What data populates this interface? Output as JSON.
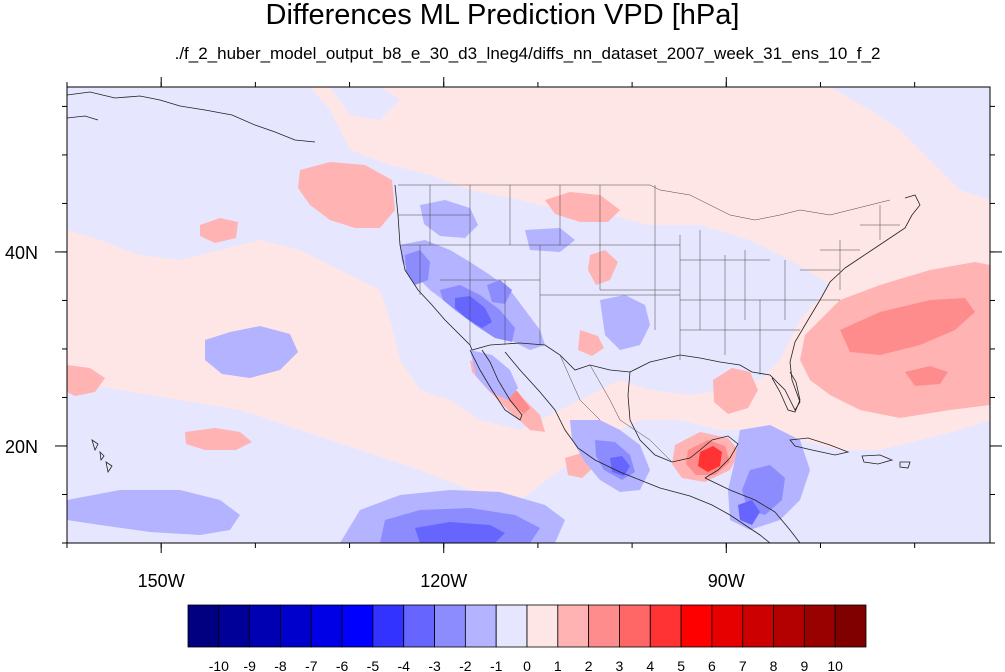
{
  "title": "Differences ML Prediction VPD [hPa]",
  "subtitle": "./f_2_huber_model_output_b8_e_30_d3_lneg4/diffs_nn_dataset_2007_week_31_ens_10_f_2",
  "map": {
    "lon_range": [
      -160,
      -62
    ],
    "lat_range": [
      10,
      57
    ],
    "x_ticks": [
      {
        "lon": -150,
        "label": "150W"
      },
      {
        "lon": -120,
        "label": "120W"
      },
      {
        "lon": -90,
        "label": "90W"
      }
    ],
    "y_ticks": [
      {
        "lat": 20,
        "label": "20N"
      },
      {
        "lat": 40,
        "label": "40N"
      }
    ]
  },
  "colorbar": {
    "levels": [
      "-10",
      "-9",
      "-8",
      "-7",
      "-6",
      "-5",
      "-4",
      "-3",
      "-2",
      "-1",
      "0",
      "1",
      "2",
      "3",
      "4",
      "5",
      "6",
      "7",
      "8",
      "9",
      "10"
    ],
    "colors": [
      "#000080",
      "#000099",
      "#0000b3",
      "#0000cc",
      "#0000e6",
      "#0000ff",
      "#3333ff",
      "#6666ff",
      "#8c8cff",
      "#b3b3ff",
      "#e6e6ff",
      "#ffe6e6",
      "#ffb3b3",
      "#ff8c8c",
      "#ff6666",
      "#ff3333",
      "#ff0000",
      "#e60000",
      "#cc0000",
      "#b30000",
      "#990000",
      "#800000"
    ]
  }
}
